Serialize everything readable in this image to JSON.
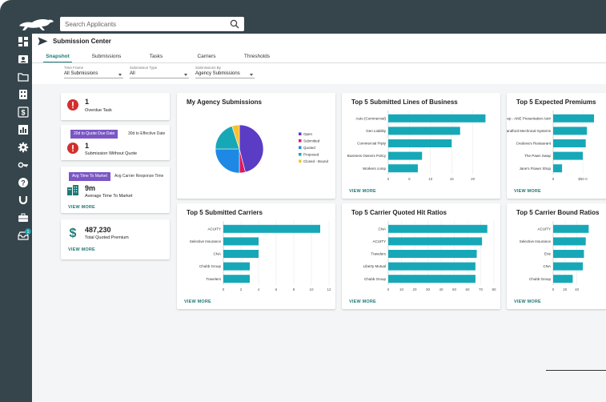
{
  "search": {
    "placeholder": "Search Applicants"
  },
  "sidebar": {
    "icons": [
      "dashboard-icon",
      "contact-card-icon",
      "folder-icon",
      "calculator-icon",
      "dollar-icon",
      "bar-chart-icon",
      "gear-icon",
      "key-icon",
      "help-icon",
      "magnet-icon",
      "briefcase-icon",
      "inbox-icon"
    ],
    "inbox_badge": "1"
  },
  "header": {
    "title": "Submission Center"
  },
  "tabs": [
    {
      "label": "Snapshot"
    },
    {
      "label": "Submissions"
    },
    {
      "label": "Tasks"
    },
    {
      "label": "Carriers"
    },
    {
      "label": "Thresholds"
    }
  ],
  "filters": {
    "time_frame": {
      "label": "Time Frame",
      "value": "All Submissions"
    },
    "submission_type": {
      "label": "Submission Type",
      "value": "All"
    },
    "submissions_by": {
      "label": "Submissions By",
      "value": "Agency Submissions"
    }
  },
  "kpis": {
    "overdue": {
      "value": "1",
      "label": "Overdue Task"
    },
    "quote": {
      "btn_active": "20d to Quote Due Date",
      "btn_inactive": "30d to Effective Date",
      "value": "1",
      "label": "Submission Without Quote"
    },
    "market": {
      "btn_active": "Avg Time To Market",
      "btn_inactive": "Avg Carrier Response Time",
      "value": "9m",
      "label": "Average Time To Market",
      "view_more": "VIEW MORE"
    },
    "premium": {
      "value": "487,230",
      "label": "Total Quoted Premium",
      "view_more": "VIEW MORE"
    }
  },
  "colors": {
    "teal": "#17a8b8",
    "accent": "#1f7a76",
    "purple": "#7b56c4",
    "alert": "#d32f2f"
  },
  "cards": {
    "my_submissions": {
      "title": "My Agency Submissions"
    },
    "lines": {
      "title": "Top 5 Submitted Lines of Business",
      "view_more": "VIEW MORE"
    },
    "premiums": {
      "title": "Top 5 Expected Premiums",
      "view_more": "VIEW MORE"
    },
    "carriers": {
      "title": "Top 5 Submitted Carriers",
      "view_more": "VIEW MORE"
    },
    "hit": {
      "title": "Top 5 Carrier Quoted Hit Ratios",
      "view_more": "VIEW MORE"
    },
    "bound": {
      "title": "Top 5 Carrier Bound Ratios",
      "view_more": "VIEW MORE"
    }
  },
  "chart_data": [
    {
      "type": "pie",
      "title": "My Agency Submissions",
      "categories": [
        "Open",
        "Submitted",
        "Quoted",
        "Proposed",
        "Closed - Bound"
      ],
      "values": [
        46,
        4,
        25,
        20,
        5
      ],
      "colors": [
        "#5b3cc4",
        "#d81b60",
        "#1e88e5",
        "#17a8b8",
        "#f9c12e"
      ],
      "legend": "right"
    },
    {
      "type": "bar",
      "orientation": "horizontal",
      "title": "Top 5 Submitted Lines of Business",
      "categories": [
        "Auto (Commercial)",
        "Gen Liability",
        "Commercial Prpty",
        "Business Owners Policy",
        "Workers comp"
      ],
      "values": [
        23,
        17,
        15,
        8,
        7
      ],
      "xticks": [
        "0",
        "5",
        "10",
        "15",
        "20"
      ],
      "xlim": [
        0,
        25
      ]
    },
    {
      "type": "bar",
      "orientation": "horizontal",
      "title": "Top 5 Expected Premiums",
      "categories": [
        "Agather Gift Shop - ANE Presentation Ast#",
        "Blandford Mechnical Systems",
        "Credeva's Restaurant",
        "The Pawn Swap",
        "Jane's Flower Shop"
      ],
      "values": [
        69000,
        57000,
        55000,
        50000,
        15000
      ],
      "xticks": [
        "0",
        "$50 0"
      ],
      "xlim": [
        0,
        100000
      ]
    },
    {
      "type": "bar",
      "orientation": "horizontal",
      "title": "Top 5 Submitted Carriers",
      "categories": [
        "ACUITY",
        "Selective Insurance",
        "CNA",
        "Chubb Group",
        "Travelers"
      ],
      "values": [
        11,
        4,
        4,
        3,
        3
      ],
      "xticks": [
        "0",
        "2",
        "4",
        "6",
        "8",
        "10",
        "12"
      ],
      "xlim": [
        0,
        12
      ]
    },
    {
      "type": "bar",
      "orientation": "horizontal",
      "title": "Top 5 Carrier Quoted Hit Ratios",
      "categories": [
        "CNA",
        "ACUITY",
        "Travelers",
        "Liberty Mutual",
        "Chubb Group"
      ],
      "values": [
        75,
        71,
        67,
        66,
        66
      ],
      "xticks": [
        "0",
        "10",
        "20",
        "30",
        "40",
        "50",
        "60",
        "70",
        "80"
      ],
      "xlim": [
        0,
        80
      ]
    },
    {
      "type": "bar",
      "orientation": "horizontal",
      "title": "Top 5 Carrier Bound Ratios",
      "categories": [
        "ACUITY",
        "Selective Insurance",
        "Erie",
        "CNA",
        "Chubb Group"
      ],
      "values": [
        60,
        55,
        52,
        50,
        33
      ],
      "xticks": [
        "0",
        "20",
        "40"
      ],
      "xlim": [
        0,
        100
      ]
    }
  ]
}
